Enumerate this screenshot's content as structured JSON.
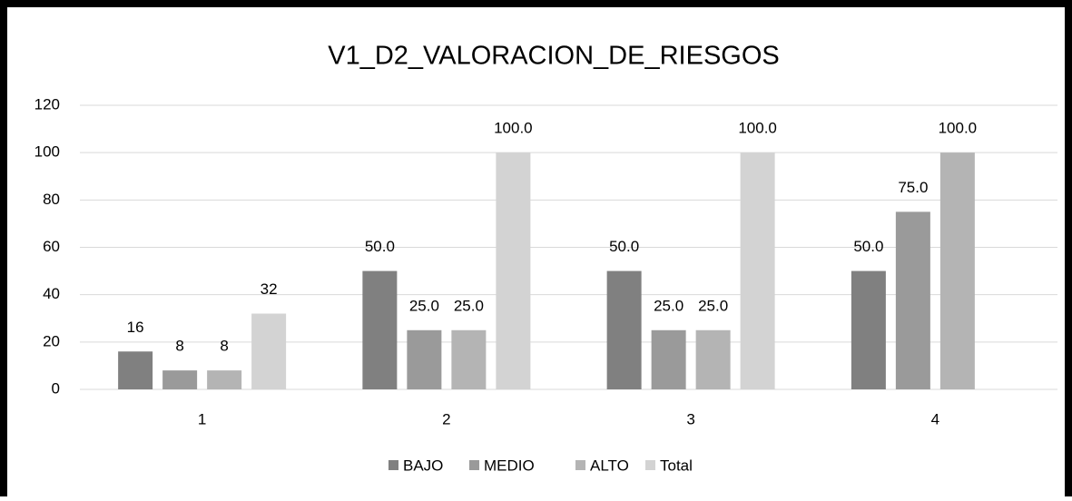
{
  "chart_data": {
    "type": "bar",
    "title": "V1_D2_VALORACION_DE_RIESGOS",
    "categories": [
      "1",
      "2",
      "3",
      "4"
    ],
    "series": [
      {
        "name": "BAJO",
        "color": "#808080",
        "values": [
          16,
          50,
          50,
          50
        ],
        "value_labels": [
          "16",
          "50.0",
          "50.0",
          "50.0"
        ]
      },
      {
        "name": "MEDIO",
        "color": "#9a9a9a",
        "values": [
          8,
          25,
          25,
          75
        ],
        "value_labels": [
          "8",
          "25.0",
          "25.0",
          "75.0"
        ]
      },
      {
        "name": "ALTO",
        "color": "#b4b4b4",
        "values": [
          8,
          25,
          25,
          100
        ],
        "value_labels": [
          "8",
          "25.0",
          "25.0",
          "100.0"
        ]
      },
      {
        "name": "Total",
        "color": "#d3d3d3",
        "values": [
          32,
          100,
          100,
          null
        ],
        "value_labels": [
          "32",
          "100.0",
          "100.0",
          null
        ]
      }
    ],
    "ylim": [
      0,
      120
    ],
    "yticks": [
      0,
      20,
      40,
      60,
      80,
      100,
      120
    ],
    "grid": true,
    "legend": "bottom"
  }
}
